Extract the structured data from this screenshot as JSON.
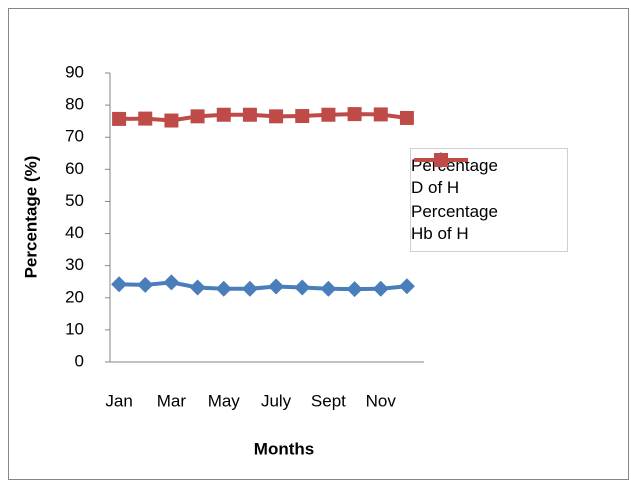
{
  "chart_data": {
    "type": "line",
    "y_label": "Percentage (%)",
    "x_label": "Months",
    "categories": [
      "Jan",
      null,
      "Mar",
      null,
      "May",
      null,
      "July",
      null,
      "Sept",
      null,
      "Nov",
      null
    ],
    "series": [
      {
        "name": "Percentage D of H",
        "color": "#4a7ebb",
        "marker": "diamond",
        "values": [
          24.2,
          24,
          24.8,
          23.2,
          22.8,
          22.8,
          23.5,
          23.2,
          22.8,
          22.7,
          22.8,
          23.6
        ]
      },
      {
        "name": "Percentage Hb of H",
        "color": "#be4b48",
        "marker": "square",
        "values": [
          75.7,
          75.8,
          75.2,
          76.5,
          77,
          77,
          76.5,
          76.6,
          77,
          77.2,
          77.1,
          76
        ]
      }
    ],
    "ylim": [
      0,
      90
    ],
    "yticks": [
      0,
      10,
      20,
      30,
      40,
      50,
      60,
      70,
      80,
      90
    ],
    "grid": false,
    "legend": "right"
  }
}
